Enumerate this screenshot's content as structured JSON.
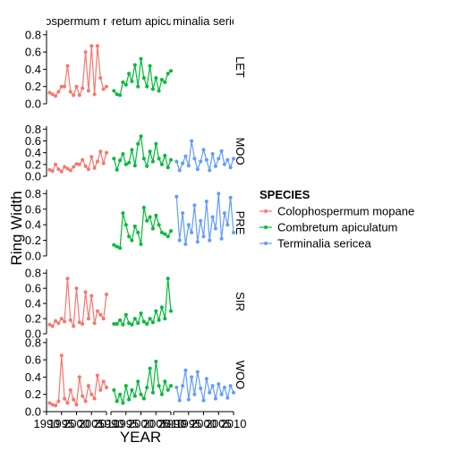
{
  "chart_data": {
    "type": "line",
    "xlabel": "YEAR",
    "ylabel": "Ring Width",
    "xlim": [
      1990,
      2010
    ],
    "ylim": [
      0,
      0.85
    ],
    "y_ticks": [
      0.0,
      0.2,
      0.4,
      0.6,
      0.8
    ],
    "y_tick_labels": [
      "0.0",
      "0.2",
      "0.4",
      "0.6",
      "0.8"
    ],
    "x_ticks": [
      1990,
      1995,
      2000,
      2005,
      2010
    ],
    "x_tick_labels": [
      "1990",
      "1995",
      "2000",
      "2005",
      "2010"
    ],
    "grid": false,
    "legend": {
      "title": "SPECIES",
      "placement": "right",
      "entries": [
        {
          "name": "Colophospermum mopane",
          "color": "#F8766D"
        },
        {
          "name": "Combretum apiculatum",
          "color": "#00BA38"
        },
        {
          "name": "Terminalia sericea",
          "color": "#619CFF"
        }
      ]
    },
    "column_strips": [
      "Colophospermum mopane",
      "Combretum apiculatum",
      "Terminalia sericea"
    ],
    "row_strips": [
      "LET",
      "MOO",
      "PRE",
      "SIR",
      "WOO"
    ],
    "panels": [
      {
        "row": "LET",
        "col": 0,
        "x": [
          1991,
          1992,
          1993,
          1994,
          1995,
          1996,
          1997,
          1998,
          1999,
          2000,
          2001,
          2002,
          2003,
          2004,
          2005,
          2006,
          2007,
          2008,
          2009,
          2010
        ],
        "y": [
          0.13,
          0.11,
          0.09,
          0.14,
          0.2,
          0.2,
          0.44,
          0.14,
          0.1,
          0.2,
          0.1,
          0.18,
          0.6,
          0.15,
          0.67,
          0.11,
          0.67,
          0.3,
          0.17,
          0.2
        ]
      },
      {
        "row": "LET",
        "col": 1,
        "x": [
          1991,
          1992,
          1993,
          1994,
          1995,
          1996,
          1997,
          1998,
          1999,
          2000,
          2001,
          2002,
          2003,
          2004,
          2005,
          2006,
          2007,
          2008,
          2009,
          2010
        ],
        "y": [
          0.15,
          0.11,
          0.1,
          0.25,
          0.22,
          0.35,
          0.26,
          0.45,
          0.2,
          0.52,
          0.3,
          0.2,
          0.44,
          0.17,
          0.3,
          0.15,
          0.28,
          0.25,
          0.35,
          0.38
        ]
      },
      {
        "row": "MOO",
        "col": 0,
        "x": [
          1991,
          1992,
          1993,
          1994,
          1995,
          1996,
          1997,
          1998,
          1999,
          2000,
          2001,
          2002,
          2003,
          2004,
          2005,
          2006,
          2007,
          2008,
          2009,
          2010
        ],
        "y": [
          0.11,
          0.09,
          0.2,
          0.12,
          0.08,
          0.16,
          0.13,
          0.1,
          0.16,
          0.21,
          0.2,
          0.28,
          0.17,
          0.12,
          0.33,
          0.14,
          0.25,
          0.42,
          0.22,
          0.4
        ]
      },
      {
        "row": "MOO",
        "col": 1,
        "x": [
          1991,
          1992,
          1993,
          1994,
          1995,
          1996,
          1997,
          1998,
          1999,
          2000,
          2001,
          2002,
          2003,
          2004,
          2005,
          2006,
          2007,
          2008,
          2009,
          2010
        ],
        "y": [
          0.3,
          0.11,
          0.27,
          0.38,
          0.2,
          0.23,
          0.45,
          0.18,
          0.55,
          0.68,
          0.3,
          0.17,
          0.42,
          0.25,
          0.55,
          0.3,
          0.2,
          0.35,
          0.15,
          0.28
        ]
      },
      {
        "row": "MOO",
        "col": 2,
        "x": [
          1991,
          1992,
          1993,
          1994,
          1995,
          1996,
          1997,
          1998,
          1999,
          2000,
          2001,
          2002,
          2003,
          2004,
          2005,
          2006,
          2007,
          2008,
          2009,
          2010
        ],
        "y": [
          0.25,
          0.1,
          0.22,
          0.34,
          0.18,
          0.6,
          0.3,
          0.12,
          0.25,
          0.45,
          0.28,
          0.1,
          0.38,
          0.17,
          0.3,
          0.43,
          0.2,
          0.28,
          0.15,
          0.3
        ]
      },
      {
        "row": "PRE",
        "col": 1,
        "x": [
          1991,
          1992,
          1993,
          1994,
          1995,
          1996,
          1997,
          1998,
          1999,
          2000,
          2001,
          2002,
          2003,
          2004,
          2005,
          2006,
          2007,
          2008,
          2009,
          2010
        ],
        "y": [
          0.14,
          0.12,
          0.1,
          0.55,
          0.4,
          0.25,
          0.2,
          0.38,
          0.3,
          0.15,
          0.62,
          0.45,
          0.5,
          0.35,
          0.52,
          0.4,
          0.3,
          0.28,
          0.25,
          0.32
        ]
      },
      {
        "row": "PRE",
        "col": 2,
        "x": [
          1991,
          1992,
          1993,
          1994,
          1995,
          1996,
          1997,
          1998,
          1999,
          2000,
          2001,
          2002,
          2003,
          2004,
          2005,
          2006,
          2007,
          2008,
          2009,
          2010
        ],
        "y": [
          0.76,
          0.2,
          0.55,
          0.15,
          0.4,
          0.3,
          0.65,
          0.18,
          0.45,
          0.25,
          0.7,
          0.2,
          0.5,
          0.35,
          0.8,
          0.22,
          0.55,
          0.4,
          0.75,
          0.3
        ]
      },
      {
        "row": "SIR",
        "col": 0,
        "x": [
          1991,
          1992,
          1993,
          1994,
          1995,
          1996,
          1997,
          1998,
          1999,
          2000,
          2001,
          2002,
          2003,
          2004,
          2005,
          2006,
          2007,
          2008,
          2009,
          2010
        ],
        "y": [
          0.12,
          0.1,
          0.17,
          0.14,
          0.2,
          0.16,
          0.73,
          0.18,
          0.1,
          0.6,
          0.15,
          0.13,
          0.55,
          0.2,
          0.5,
          0.14,
          0.3,
          0.25,
          0.2,
          0.52
        ]
      },
      {
        "row": "SIR",
        "col": 1,
        "x": [
          1991,
          1992,
          1993,
          1994,
          1995,
          1996,
          1997,
          1998,
          1999,
          2000,
          2001,
          2002,
          2003,
          2004,
          2005,
          2006,
          2007,
          2008,
          2009,
          2010
        ],
        "y": [
          0.13,
          0.13,
          0.18,
          0.12,
          0.25,
          0.14,
          0.12,
          0.2,
          0.14,
          0.27,
          0.16,
          0.13,
          0.2,
          0.15,
          0.3,
          0.18,
          0.35,
          0.2,
          0.73,
          0.3
        ]
      },
      {
        "row": "WOO",
        "col": 0,
        "x": [
          1991,
          1992,
          1993,
          1994,
          1995,
          1996,
          1997,
          1998,
          1999,
          2000,
          2001,
          2002,
          2003,
          2004,
          2005,
          2006,
          2007,
          2008,
          2009,
          2010
        ],
        "y": [
          0.1,
          0.08,
          0.07,
          0.12,
          0.65,
          0.15,
          0.1,
          0.25,
          0.14,
          0.08,
          0.4,
          0.18,
          0.12,
          0.3,
          0.2,
          0.15,
          0.42,
          0.25,
          0.35,
          0.28
        ]
      },
      {
        "row": "WOO",
        "col": 1,
        "x": [
          1991,
          1992,
          1993,
          1994,
          1995,
          1996,
          1997,
          1998,
          1999,
          2000,
          2001,
          2002,
          2003,
          2004,
          2005,
          2006,
          2007,
          2008,
          2009,
          2010
        ],
        "y": [
          0.25,
          0.12,
          0.2,
          0.1,
          0.3,
          0.14,
          0.25,
          0.18,
          0.35,
          0.2,
          0.15,
          0.28,
          0.5,
          0.22,
          0.58,
          0.3,
          0.2,
          0.35,
          0.25,
          0.3
        ]
      },
      {
        "row": "WOO",
        "col": 2,
        "x": [
          1991,
          1992,
          1993,
          1994,
          1995,
          1996,
          1997,
          1998,
          1999,
          2000,
          2001,
          2002,
          2003,
          2004,
          2005,
          2006,
          2007,
          2008,
          2009,
          2010
        ],
        "y": [
          0.28,
          0.13,
          0.3,
          0.48,
          0.14,
          0.4,
          0.2,
          0.46,
          0.27,
          0.13,
          0.38,
          0.22,
          0.3,
          0.15,
          0.32,
          0.2,
          0.28,
          0.16,
          0.3,
          0.22
        ]
      }
    ]
  }
}
